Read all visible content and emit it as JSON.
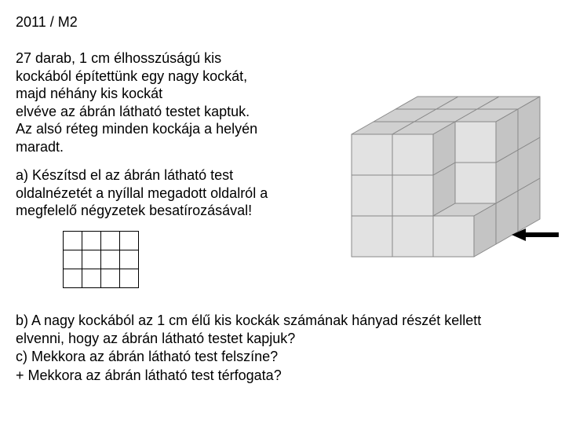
{
  "header": "2011 / M2",
  "p1_l1": "27 darab, 1 cm élhosszúságú kis",
  "p1_l2": "kockából építettünk egy nagy kockát,",
  "p1_l3": "majd néhány kis kockát",
  "p1_l4": "elvéve az ábrán látható testet kaptuk.",
  "p1_l5": "Az alsó réteg minden kockája a helyén",
  "p1_l6": "maradt.",
  "p2_l1": "a) Készítsd el az ábrán látható test",
  "p2_l2": "oldalnézetét a nyíllal megadott oldalról a",
  "p2_l3": "megfelelő négyzetek besatírozásával!",
  "p3_l1": "b) A nagy kockából az 1 cm élű kis kockák számának hányad részét kellett",
  "p3_l2": "elvenni, hogy az ábrán látható testet kapjuk?",
  "p3_l3": "c) Mekkora az ábrán látható test felszíne?",
  "p3_l4": "+ Mekkora az ábrán látható test térfogata?",
  "grid": {
    "cols": 4,
    "rows": 3
  },
  "figure": {
    "face_fill": "#e2e2e2",
    "top_fill": "#d0d0d0",
    "side_fill": "#c4c4c4",
    "stroke": "#888888",
    "arrow_fill": "#000000"
  }
}
